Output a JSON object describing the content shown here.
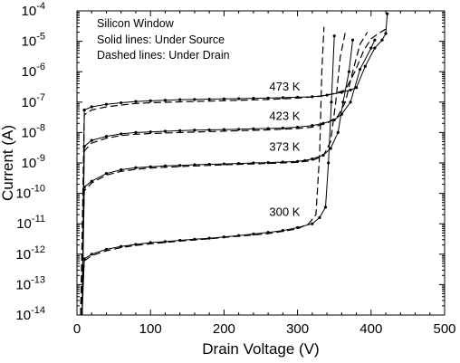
{
  "chart_data": {
    "type": "line",
    "xlabel": "Drain Voltage (V)",
    "ylabel": "Current (A)",
    "xlim": [
      0,
      500
    ],
    "ylim": [
      1e-14,
      0.0001
    ],
    "yscale": "log",
    "grid": false,
    "x_ticks": [
      "0",
      "100",
      "200",
      "300",
      "400",
      "500"
    ],
    "y_ticks": [
      {
        "base": "10",
        "exp": "-14",
        "value": 1e-14
      },
      {
        "base": "10",
        "exp": "-13",
        "value": 1e-13
      },
      {
        "base": "10",
        "exp": "-12",
        "value": 1e-12
      },
      {
        "base": "10",
        "exp": "-11",
        "value": 1e-11
      },
      {
        "base": "10",
        "exp": "-10",
        "value": 1e-10
      },
      {
        "base": "10",
        "exp": "-9",
        "value": 1e-09
      },
      {
        "base": "10",
        "exp": "-8",
        "value": 1e-08
      },
      {
        "base": "10",
        "exp": "-7",
        "value": 1e-07
      },
      {
        "base": "10",
        "exp": "-6",
        "value": 1e-06
      },
      {
        "base": "10",
        "exp": "-5",
        "value": 1e-05
      },
      {
        "base": "10",
        "exp": "-4",
        "value": 0.0001
      }
    ],
    "legend_lines": [
      "Silicon Window",
      "Solid lines: Under Source",
      "Dashed lines: Under Drain"
    ],
    "legend_position": "top-left",
    "series_labels": [
      {
        "text": "473 K",
        "x": 200,
        "y": 1.8e-07
      },
      {
        "text": "423 K",
        "x": 200,
        "y": 2e-08
      },
      {
        "text": "373 K",
        "x": 200,
        "y": 1.9e-09
      },
      {
        "text": "300 K",
        "x": 200,
        "y": 1.4e-11
      }
    ],
    "series": [
      {
        "style": "solid",
        "markers": true,
        "x": [
          7,
          10,
          20,
          40,
          60,
          80,
          100,
          120,
          140,
          160,
          180,
          200,
          220,
          240,
          260,
          280,
          300,
          320,
          340,
          360,
          372,
          380,
          392,
          405,
          415,
          420,
          422
        ],
        "y": [
          1e-14,
          5.5e-08,
          7e-08,
          8.5e-08,
          9.5e-08,
          1.05e-07,
          1.1e-07,
          1.15e-07,
          1.2e-07,
          1.22e-07,
          1.25e-07,
          1.28e-07,
          1.3e-07,
          1.33e-07,
          1.36e-07,
          1.4e-07,
          1.45e-07,
          1.5e-07,
          1.7e-07,
          2.1e-07,
          2.5e-07,
          3e-07,
          1.5e-06,
          6e-06,
          1.1e-05,
          1.8e-05,
          8e-05
        ]
      },
      {
        "style": "dashed",
        "markers": false,
        "x": [
          5,
          10,
          20,
          40,
          60,
          80,
          100,
          140,
          180,
          220,
          260,
          300,
          330,
          350,
          365,
          378,
          390,
          400,
          410,
          420
        ],
        "y": [
          1e-14,
          3.8e-08,
          5.5e-08,
          7e-08,
          8e-08,
          9e-08,
          9.5e-08,
          1.02e-07,
          1.08e-07,
          1.15e-07,
          1.22e-07,
          1.35e-07,
          1.55e-07,
          1.9e-07,
          2.5e-07,
          1e-06,
          5e-06,
          1.2e-05,
          1.8e-05,
          2.5e-05
        ]
      },
      {
        "style": "solid",
        "markers": true,
        "x": [
          7,
          10,
          20,
          40,
          60,
          80,
          100,
          120,
          140,
          160,
          180,
          200,
          220,
          240,
          260,
          280,
          300,
          320,
          335,
          350,
          360,
          372,
          385,
          400,
          405
        ],
        "y": [
          1e-14,
          3.5e-09,
          5.5e-09,
          7.5e-09,
          9e-09,
          1e-08,
          1.05e-08,
          1.1e-08,
          1.15e-08,
          1.2e-08,
          1.22e-08,
          1.25e-08,
          1.28e-08,
          1.32e-08,
          1.36e-08,
          1.4e-08,
          1.5e-08,
          1.7e-08,
          2e-08,
          2.6e-08,
          4e-08,
          1e-07,
          1.2e-06,
          6e-06,
          1.1e-05
        ]
      },
      {
        "style": "dashed",
        "markers": false,
        "x": [
          5,
          10,
          20,
          40,
          60,
          80,
          100,
          140,
          180,
          220,
          260,
          300,
          320,
          340,
          355,
          365,
          375,
          385,
          395
        ],
        "y": [
          1e-14,
          2.5e-09,
          4.5e-09,
          6.5e-09,
          8e-09,
          8.8e-09,
          9.3e-09,
          1e-08,
          1.07e-08,
          1.15e-08,
          1.22e-08,
          1.35e-08,
          1.5e-08,
          2e-08,
          3.5e-08,
          1e-07,
          1e-06,
          8e-06,
          2e-05
        ]
      },
      {
        "style": "solid",
        "markers": true,
        "x": [
          7,
          10,
          20,
          40,
          60,
          80,
          100,
          120,
          140,
          160,
          180,
          200,
          220,
          240,
          260,
          280,
          300,
          310,
          320,
          335,
          345,
          355,
          362,
          370,
          375
        ],
        "y": [
          1e-14,
          1.6e-10,
          2.5e-10,
          4.5e-10,
          6e-10,
          7e-10,
          7.5e-10,
          8e-10,
          8.3e-10,
          8.7e-10,
          9e-10,
          9.3e-10,
          9.6e-10,
          1e-09,
          1.03e-09,
          1.07e-09,
          1.12e-09,
          1.2e-09,
          1.35e-09,
          1.8e-09,
          3e-09,
          1e-08,
          1e-07,
          1e-06,
          1.1e-05
        ]
      },
      {
        "style": "dashed",
        "markers": false,
        "x": [
          5,
          10,
          20,
          40,
          60,
          80,
          100,
          140,
          180,
          220,
          260,
          300,
          320,
          335,
          345,
          352,
          358,
          365
        ],
        "y": [
          1e-14,
          1.2e-10,
          2.2e-10,
          4e-10,
          5.3e-10,
          6.2e-10,
          6.8e-10,
          7.6e-10,
          8.3e-10,
          9e-10,
          9.6e-10,
          1.05e-09,
          1.2e-09,
          1.7e-09,
          5e-09,
          1e-07,
          3e-06,
          2e-05
        ]
      },
      {
        "style": "solid",
        "markers": true,
        "x": [
          7,
          10,
          20,
          40,
          60,
          80,
          100,
          120,
          140,
          160,
          180,
          200,
          220,
          240,
          260,
          280,
          300,
          320,
          330,
          338,
          342,
          346,
          350
        ],
        "y": [
          1e-14,
          7e-13,
          1e-12,
          1.45e-12,
          1.8e-12,
          2.1e-12,
          2.4e-12,
          2.6e-12,
          2.85e-12,
          3.1e-12,
          3.35e-12,
          3.7e-12,
          4.1e-12,
          4.6e-12,
          5.2e-12,
          6e-12,
          7.5e-12,
          1e-11,
          1.6e-11,
          3.5e-11,
          1e-09,
          1e-07,
          1.5e-05
        ]
      },
      {
        "style": "dashed",
        "markers": false,
        "x": [
          5,
          10,
          20,
          40,
          60,
          80,
          100,
          140,
          180,
          220,
          260,
          300,
          315,
          325,
          330,
          333,
          336
        ],
        "y": [
          1e-14,
          6e-13,
          9e-13,
          1.3e-12,
          1.65e-12,
          1.95e-12,
          2.2e-12,
          2.7e-12,
          3.2e-12,
          3.9e-12,
          4.7e-12,
          6.8e-12,
          1e-11,
          2e-11,
          2e-09,
          1e-06,
          3e-05
        ]
      }
    ]
  }
}
